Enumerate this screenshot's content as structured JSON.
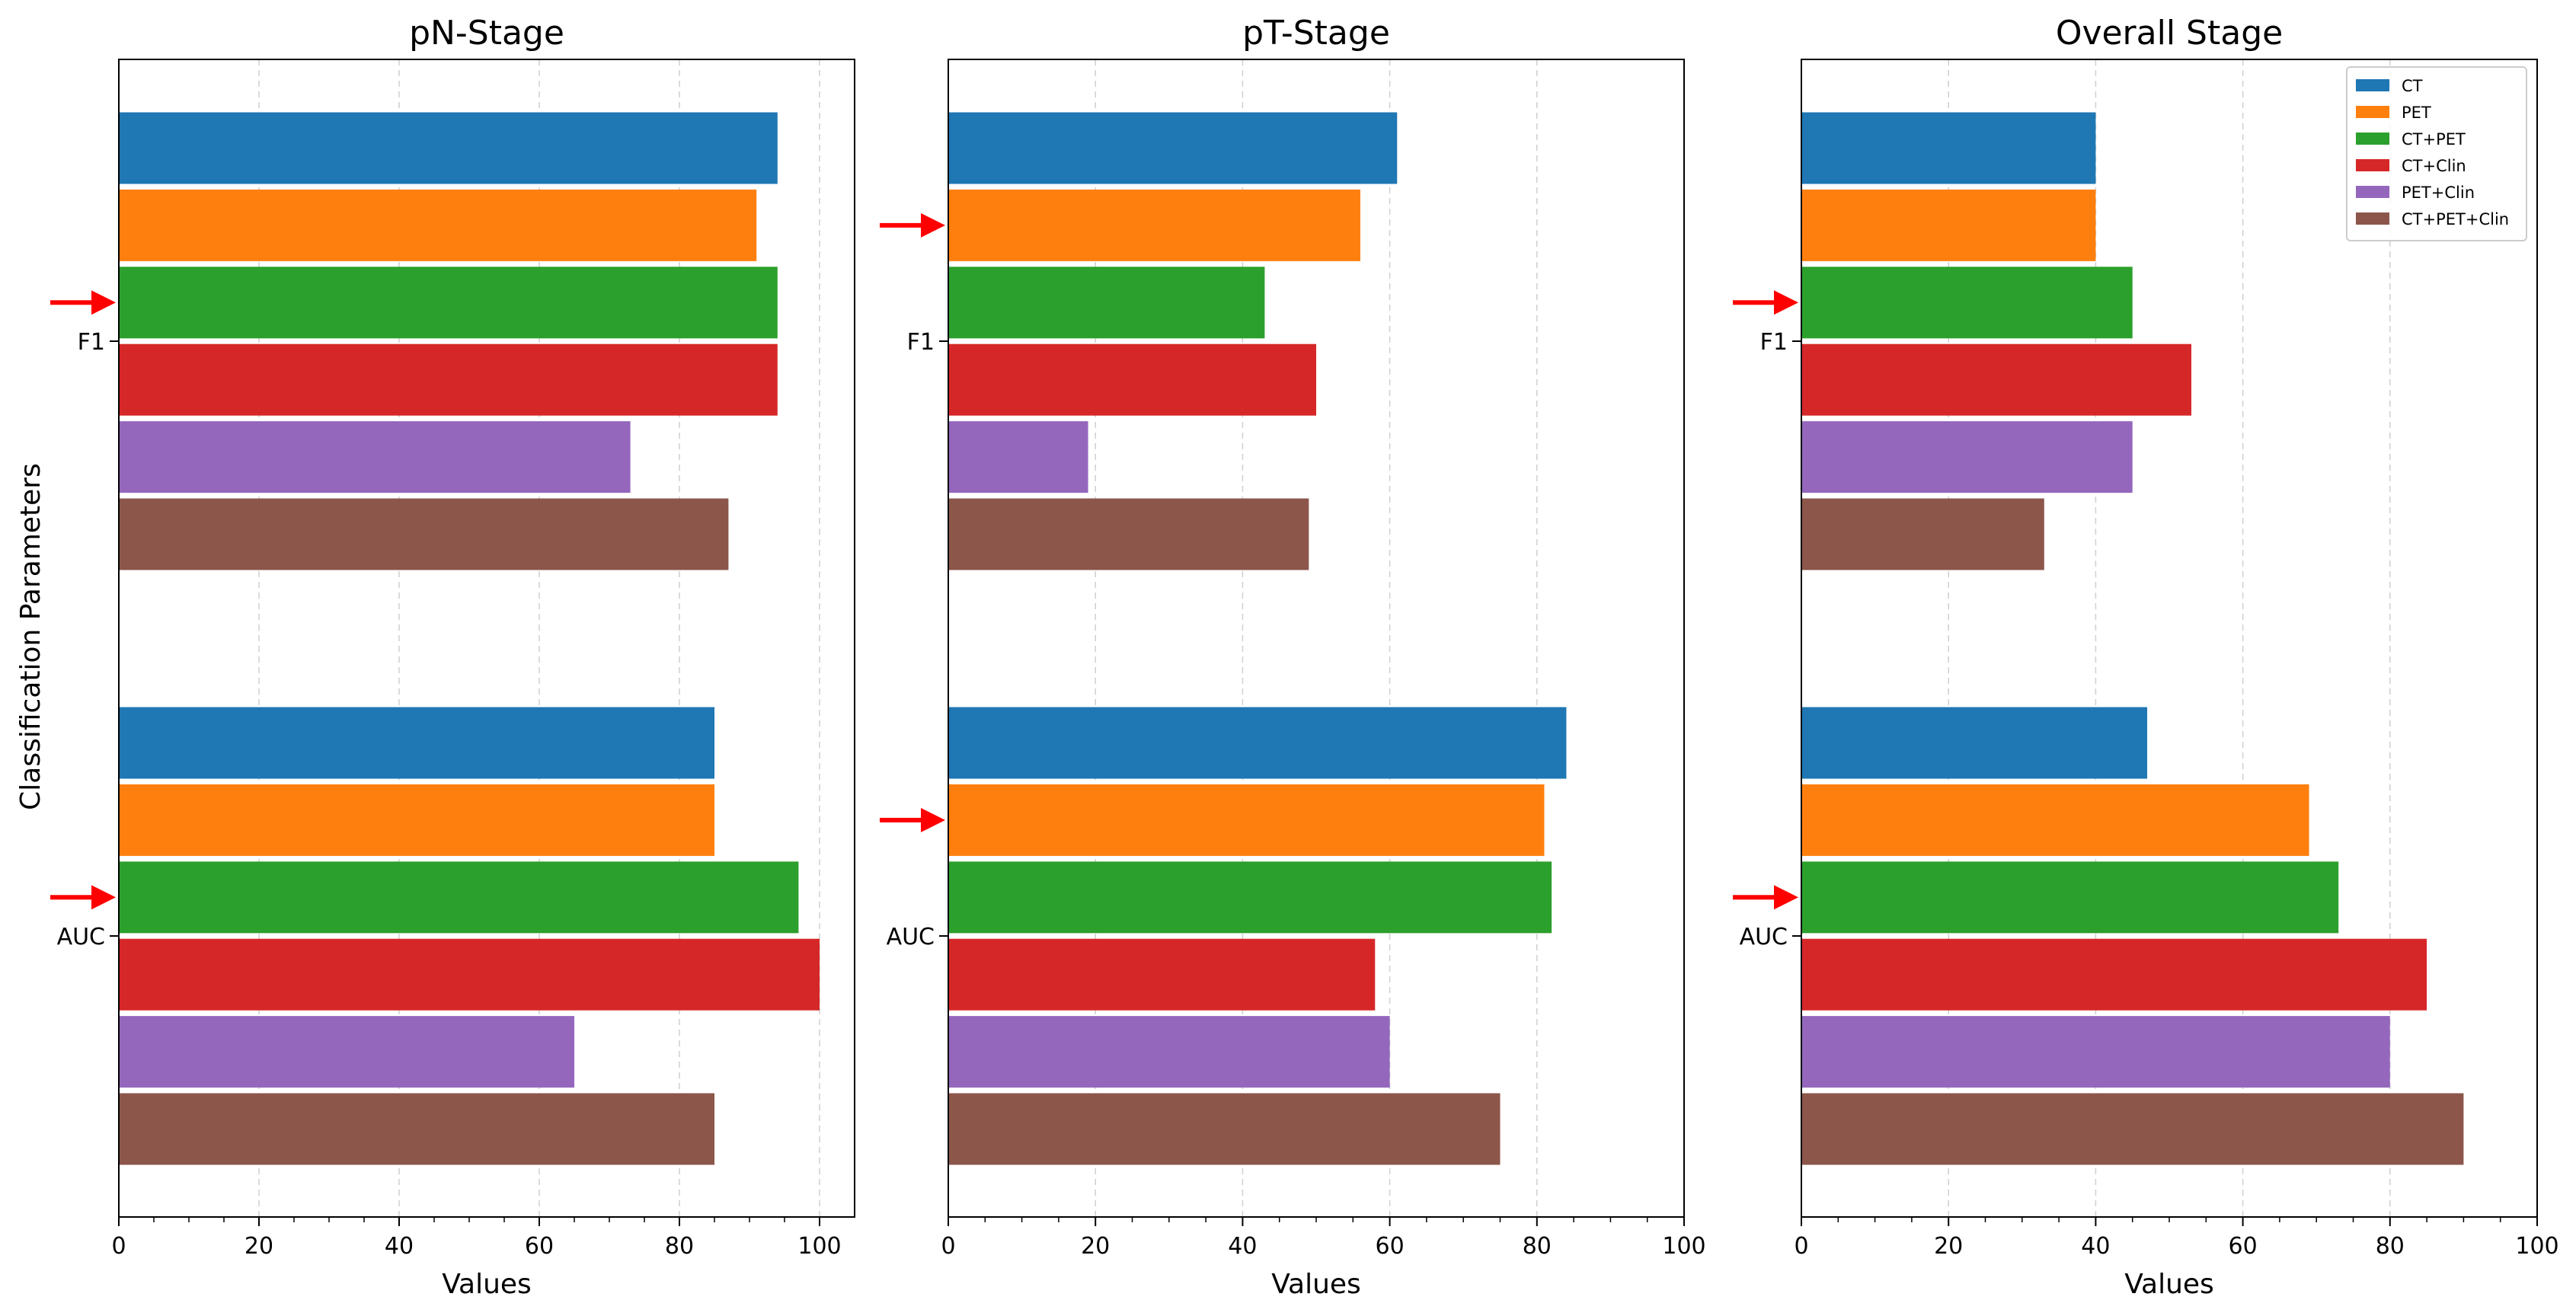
{
  "chart_data": [
    {
      "type": "bar",
      "orientation": "horizontal",
      "title": "pN-Stage",
      "xlabel": "Values",
      "ylabel": "Classification Parameters",
      "xlim": [
        0,
        105
      ],
      "xticks": [
        0,
        20,
        40,
        60,
        80,
        100
      ],
      "grid": "x-dashed",
      "categories": [
        "F1",
        "AUC"
      ],
      "series": [
        {
          "name": "CT",
          "values": [
            94,
            85
          ]
        },
        {
          "name": "PET",
          "values": [
            91,
            85
          ]
        },
        {
          "name": "CT+PET",
          "values": [
            94,
            97
          ]
        },
        {
          "name": "CT+Clin",
          "values": [
            94,
            100
          ]
        },
        {
          "name": "PET+Clin",
          "values": [
            73,
            65
          ]
        },
        {
          "name": "CT+PET+Clin",
          "values": [
            87,
            85
          ]
        }
      ],
      "arrows": [
        {
          "category": "F1",
          "series": "CT+PET"
        },
        {
          "category": "AUC",
          "series": "CT+PET"
        }
      ]
    },
    {
      "type": "bar",
      "orientation": "horizontal",
      "title": "pT-Stage",
      "xlabel": "Values",
      "ylabel": "",
      "xlim": [
        0,
        100
      ],
      "xticks": [
        0,
        20,
        40,
        60,
        80,
        100
      ],
      "grid": "x-dashed",
      "categories": [
        "F1",
        "AUC"
      ],
      "series": [
        {
          "name": "CT",
          "values": [
            61,
            84
          ]
        },
        {
          "name": "PET",
          "values": [
            56,
            81
          ]
        },
        {
          "name": "CT+PET",
          "values": [
            43,
            82
          ]
        },
        {
          "name": "CT+Clin",
          "values": [
            50,
            58
          ]
        },
        {
          "name": "PET+Clin",
          "values": [
            19,
            60
          ]
        },
        {
          "name": "CT+PET+Clin",
          "values": [
            49,
            75
          ]
        }
      ],
      "arrows": [
        {
          "category": "F1",
          "series": "PET"
        },
        {
          "category": "AUC",
          "series": "PET"
        }
      ]
    },
    {
      "type": "bar",
      "orientation": "horizontal",
      "title": "Overall Stage",
      "xlabel": "Values",
      "ylabel": "",
      "xlim": [
        0,
        100
      ],
      "xticks": [
        0,
        20,
        40,
        60,
        80,
        100
      ],
      "grid": "x-dashed",
      "legend": "top-right",
      "categories": [
        "F1",
        "AUC"
      ],
      "series": [
        {
          "name": "CT",
          "values": [
            40,
            47
          ]
        },
        {
          "name": "PET",
          "values": [
            40,
            69
          ]
        },
        {
          "name": "CT+PET",
          "values": [
            45,
            73
          ]
        },
        {
          "name": "CT+Clin",
          "values": [
            53,
            85
          ]
        },
        {
          "name": "PET+Clin",
          "values": [
            45,
            80
          ]
        },
        {
          "name": "CT+PET+Clin",
          "values": [
            33,
            90
          ]
        }
      ],
      "arrows": [
        {
          "category": "F1",
          "series": "CT+PET"
        },
        {
          "category": "AUC",
          "series": "CT+PET"
        }
      ]
    }
  ],
  "colors": {
    "CT": "#1f77b4",
    "PET": "#ff7f0e",
    "CT+PET": "#2ca02c",
    "CT+Clin": "#d62728",
    "PET+Clin": "#9467bd",
    "CT+PET+Clin": "#8c564b",
    "arrow": "#ff0000",
    "grid": "#cfcfcf",
    "spine": "#000000"
  }
}
